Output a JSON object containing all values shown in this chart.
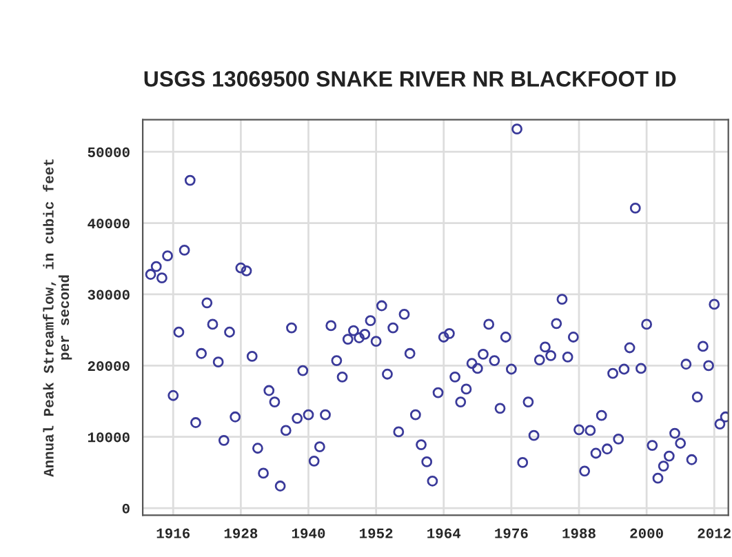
{
  "chart_data": {
    "type": "scatter",
    "title": "USGS 13069500 SNAKE RIVER NR BLACKFOOT ID",
    "ylabel": "Annual Peak Streamflow, in cubic feet\nper second",
    "x": [
      1912,
      1913,
      1914,
      1915,
      1916,
      1917,
      1918,
      1919,
      1920,
      1921,
      1922,
      1923,
      1924,
      1925,
      1926,
      1927,
      1928,
      1929,
      1930,
      1931,
      1932,
      1933,
      1934,
      1935,
      1936,
      1937,
      1938,
      1939,
      1940,
      1941,
      1942,
      1943,
      1944,
      1945,
      1946,
      1947,
      1948,
      1949,
      1950,
      1951,
      1952,
      1953,
      1954,
      1955,
      1956,
      1957,
      1958,
      1959,
      1960,
      1961,
      1962,
      1963,
      1964,
      1965,
      1966,
      1967,
      1968,
      1969,
      1970,
      1971,
      1972,
      1973,
      1974,
      1975,
      1976,
      1977,
      1978,
      1979,
      1980,
      1981,
      1982,
      1983,
      1984,
      1985,
      1986,
      1987,
      1988,
      1989,
      1990,
      1991,
      1992,
      1993,
      1994,
      1995,
      1996,
      1997,
      1998,
      1999,
      2000,
      2001,
      2002,
      2003,
      2004,
      2005,
      2006,
      2007,
      2008,
      2009,
      2010,
      2011,
      2012,
      2013,
      2014
    ],
    "series": [
      {
        "color": "#3a3a9a",
        "marker": "circle",
        "values": [
          32800,
          33900,
          32300,
          35400,
          15800,
          24700,
          36200,
          46000,
          12000,
          21700,
          28800,
          25800,
          20500,
          9500,
          24700,
          12800,
          33700,
          33300,
          21300,
          8400,
          4900,
          16500,
          14900,
          3100,
          10900,
          25300,
          12600,
          19300,
          13100,
          6600,
          8600,
          13100,
          25600,
          20700,
          18400,
          23700,
          24900,
          23900,
          24400,
          26300,
          23400,
          28400,
          18800,
          25300,
          10700,
          27200,
          21700,
          13100,
          8900,
          6500,
          3800,
          16200,
          24000,
          24500,
          18400,
          14900,
          16700,
          20300,
          19600,
          21600,
          25800,
          20700,
          14000,
          24000,
          19500,
          53200,
          6400,
          14900,
          10200,
          20800,
          22600,
          21400,
          25900,
          29300,
          21200,
          24000,
          11000,
          5200,
          10900,
          7700,
          13000,
          8300,
          18900,
          9700,
          19500,
          22500,
          42100,
          19600,
          25800,
          8800,
          4200,
          5900,
          7300,
          10500,
          9100,
          20200,
          6800,
          15600,
          22700,
          20000,
          28600,
          11800,
          12800
        ]
      }
    ],
    "xlim": [
      1910.6,
      2014.5
    ],
    "ylim": [
      -1000,
      54500
    ],
    "xticks": [
      1916,
      1928,
      1940,
      1952,
      1964,
      1976,
      1988,
      2000,
      2012
    ],
    "yticks": [
      0,
      10000,
      20000,
      30000,
      40000,
      50000
    ],
    "grid": true
  }
}
